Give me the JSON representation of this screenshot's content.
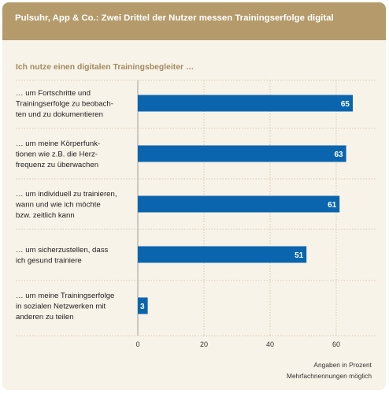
{
  "header": {
    "title": "Pulsuhr, App & Co.: Zwei Drittel der Nutzer messen Trainingserfolge digital"
  },
  "subtitle": "Ich nutze einen digitalen Trainingsbegleiter …",
  "footnote": {
    "line1": "Angaben in Prozent",
    "line2": "Mehrfachnennungen möglich"
  },
  "chart_data": {
    "type": "bar",
    "orientation": "horizontal",
    "categories": [
      [
        "… um Fortschritte und",
        "Trainingserfolge zu beobach-",
        "ten und zu dokumentieren"
      ],
      [
        "… um meine Körperfunk-",
        "tionen wie z.B. die Herz-",
        "frequenz zu überwachen"
      ],
      [
        "… um individuell zu trainieren,",
        "wann und wie ich möchte",
        "bzw. zeitlich kann"
      ],
      [
        "… um sicherzustellen, dass",
        "ich gesund trainiere"
      ],
      [
        "… um meine Trainingserfolge",
        "in sozialen Netzwerken mit",
        "anderen zu teilen"
      ]
    ],
    "values": [
      65,
      63,
      61,
      51,
      3
    ],
    "data_labels": [
      "65",
      "63",
      "61",
      "51",
      "3"
    ],
    "xlim": [
      0,
      72
    ],
    "xticks": [
      0,
      20,
      40,
      60
    ],
    "xtick_labels": [
      "0",
      "20",
      "40",
      "60"
    ],
    "grid": "vertical",
    "bar_color": "#0a65ae",
    "grid_color": "#cdbf9f"
  }
}
